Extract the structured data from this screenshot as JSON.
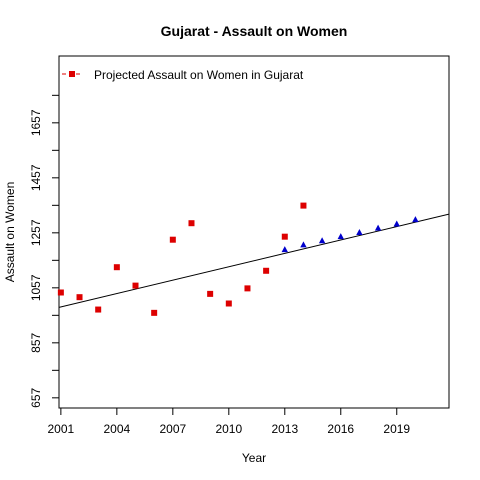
{
  "chart_data": {
    "type": "scatter",
    "title": "Gujarat  -  Assault on Women",
    "xlabel": "Year",
    "ylabel": "Assault on Women",
    "xlim": [
      2000.9,
      2021.8
    ],
    "ylim": [
      620,
      1900
    ],
    "x_ticks": [
      2001,
      2004,
      2007,
      2010,
      2013,
      2016,
      2019
    ],
    "y_ticks": [
      657,
      857,
      1057,
      1257,
      1457,
      1657
    ],
    "y_minor_ticks": [
      757,
      957,
      1157,
      1357,
      1557,
      1757
    ],
    "grid": false,
    "legend": {
      "position": "top-left",
      "entries": [
        "Projected  Assault on Women  in  Gujarat"
      ]
    },
    "series": [
      {
        "name": "Projected  Assault on Women  in  Gujarat",
        "kind": "points",
        "marker": "square",
        "color": "#dd0000",
        "x": [
          2001,
          2002,
          2003,
          2004,
          2005,
          2006,
          2007,
          2008,
          2009,
          2010,
          2011,
          2012,
          2013,
          2014
        ],
        "y": [
          1040,
          1023,
          978,
          1132,
          1065,
          966,
          1232,
          1292,
          1035,
          1000,
          1055,
          1119,
          1243,
          1356
        ]
      },
      {
        "kind": "points",
        "marker": "triangle",
        "color": "#0000cc",
        "x": [
          2013,
          2014,
          2015,
          2016,
          2017,
          2018,
          2019,
          2020
        ],
        "y": [
          1196,
          1213,
          1228,
          1243,
          1258,
          1274,
          1289,
          1305
        ]
      },
      {
        "kind": "trend-line",
        "color": "#000000",
        "x": [
          2000.9,
          2021.8
        ],
        "y": [
          986,
          1325
        ]
      }
    ]
  }
}
